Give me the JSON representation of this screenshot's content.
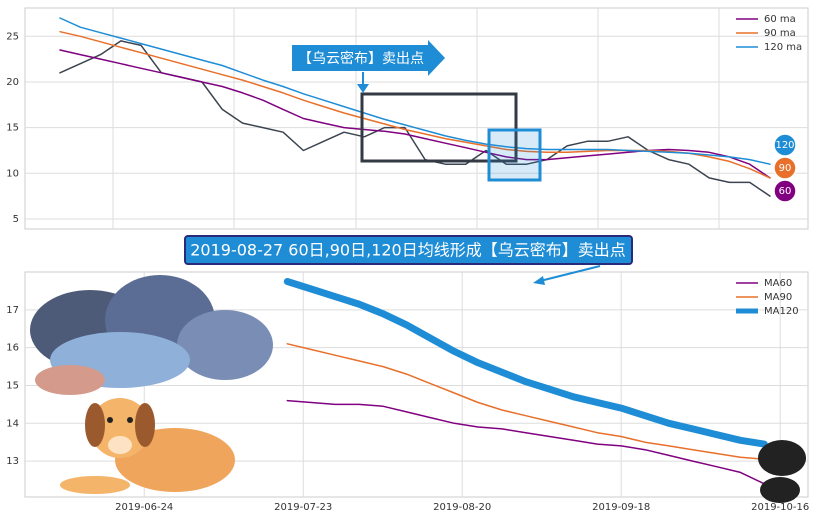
{
  "chart_data": [
    {
      "type": "line",
      "series": [
        {
          "color": "#3b4450",
          "values": [
            21,
            22,
            23,
            24.5,
            24,
            21,
            20.5,
            20,
            17,
            15.5,
            15,
            14.5,
            12.5,
            13.5,
            14.5,
            14,
            15,
            15,
            11.5,
            11,
            11,
            12.5,
            11,
            11,
            11.5,
            13,
            13.5,
            13.5,
            14,
            12.5,
            11.5,
            11,
            9.5,
            9,
            9,
            7.5
          ]
        },
        {
          "name": "60 ma",
          "color": "#800080",
          "values": [
            23.5,
            23,
            22.5,
            22,
            21.5,
            21,
            20.5,
            20,
            19.5,
            18.8,
            18,
            17,
            16,
            15.5,
            15,
            14.8,
            14.6,
            14.3,
            13.8,
            13.3,
            12.8,
            12.3,
            11.8,
            11.5,
            11.5,
            11.7,
            11.9,
            12.1,
            12.3,
            12.5,
            12.6,
            12.5,
            12.3,
            11.8,
            11,
            9.5
          ]
        },
        {
          "name": "90 ma",
          "color": "#e8702a",
          "values": [
            25.5,
            25,
            24.4,
            23.8,
            23.2,
            22.6,
            22,
            21.4,
            20.8,
            20.2,
            19.5,
            18.8,
            18,
            17.3,
            16.6,
            16,
            15.4,
            14.8,
            14.3,
            13.8,
            13.4,
            13,
            12.6,
            12.4,
            12.3,
            12.3,
            12.4,
            12.5,
            12.5,
            12.5,
            12.4,
            12.2,
            11.8,
            11.3,
            10.5,
            9.5
          ]
        },
        {
          "name": "120 ma",
          "color": "#1f8dd6",
          "values": [
            27,
            26,
            25.4,
            24.8,
            24.2,
            23.6,
            23,
            22.4,
            21.8,
            21,
            20.2,
            19.5,
            18.7,
            18,
            17.3,
            16.6,
            15.9,
            15.3,
            14.7,
            14.1,
            13.6,
            13.2,
            12.9,
            12.7,
            12.6,
            12.6,
            12.6,
            12.6,
            12.5,
            12.4,
            12.3,
            12.2,
            12,
            11.8,
            11.5,
            11
          ]
        }
      ],
      "ylim": [
        3.9,
        28.1
      ],
      "yticks": [
        5,
        10,
        15,
        20,
        25
      ],
      "grid": true,
      "legend": "upper right",
      "annotation": "【乌云密布】卖出点",
      "end_labels": [
        "120",
        "90",
        "60"
      ]
    },
    {
      "type": "line",
      "x": [
        18,
        21,
        24,
        27,
        30,
        33,
        36,
        39,
        42,
        45,
        48,
        51,
        54,
        57,
        60,
        63,
        66,
        69,
        72,
        75,
        78
      ],
      "series": [
        {
          "name": "MA60",
          "color": "#800080",
          "width": 1.5,
          "values": [
            14.6,
            14.55,
            14.5,
            14.5,
            14.45,
            14.3,
            14.15,
            14.0,
            13.9,
            13.85,
            13.75,
            13.65,
            13.55,
            13.45,
            13.4,
            13.3,
            13.15,
            13.0,
            12.85,
            12.7,
            12.4
          ]
        },
        {
          "name": "MA90",
          "color": "#e8702a",
          "width": 1.5,
          "values": [
            16.1,
            15.95,
            15.8,
            15.65,
            15.5,
            15.3,
            15.05,
            14.8,
            14.55,
            14.35,
            14.2,
            14.05,
            13.9,
            13.75,
            13.65,
            13.5,
            13.4,
            13.3,
            13.2,
            13.1,
            13.05
          ]
        },
        {
          "name": "MA120",
          "color": "#1f8dd6",
          "width": 7,
          "values": [
            17.75,
            17.55,
            17.35,
            17.15,
            16.9,
            16.6,
            16.25,
            15.9,
            15.6,
            15.35,
            15.1,
            14.9,
            14.7,
            14.55,
            14.4,
            14.2,
            14.0,
            13.85,
            13.7,
            13.55,
            13.45
          ]
        }
      ],
      "xlim": [
        -15,
        83.5
      ],
      "xticks": [
        {
          "value": 0,
          "label": "2019-06-24"
        },
        {
          "value": 20,
          "label": "2019-07-23"
        },
        {
          "value": 40,
          "label": "2019-08-20"
        },
        {
          "value": 60,
          "label": "2019-09-18"
        },
        {
          "value": 80,
          "label": "2019-10-16"
        }
      ],
      "ylim": [
        12.05,
        18.0
      ],
      "yticks": [
        13,
        14,
        15,
        16,
        17
      ],
      "grid": true,
      "legend": "upper right",
      "annotation": "2019-08-27 60日,90日,120日均线形成【乌云密布】卖出点"
    }
  ]
}
